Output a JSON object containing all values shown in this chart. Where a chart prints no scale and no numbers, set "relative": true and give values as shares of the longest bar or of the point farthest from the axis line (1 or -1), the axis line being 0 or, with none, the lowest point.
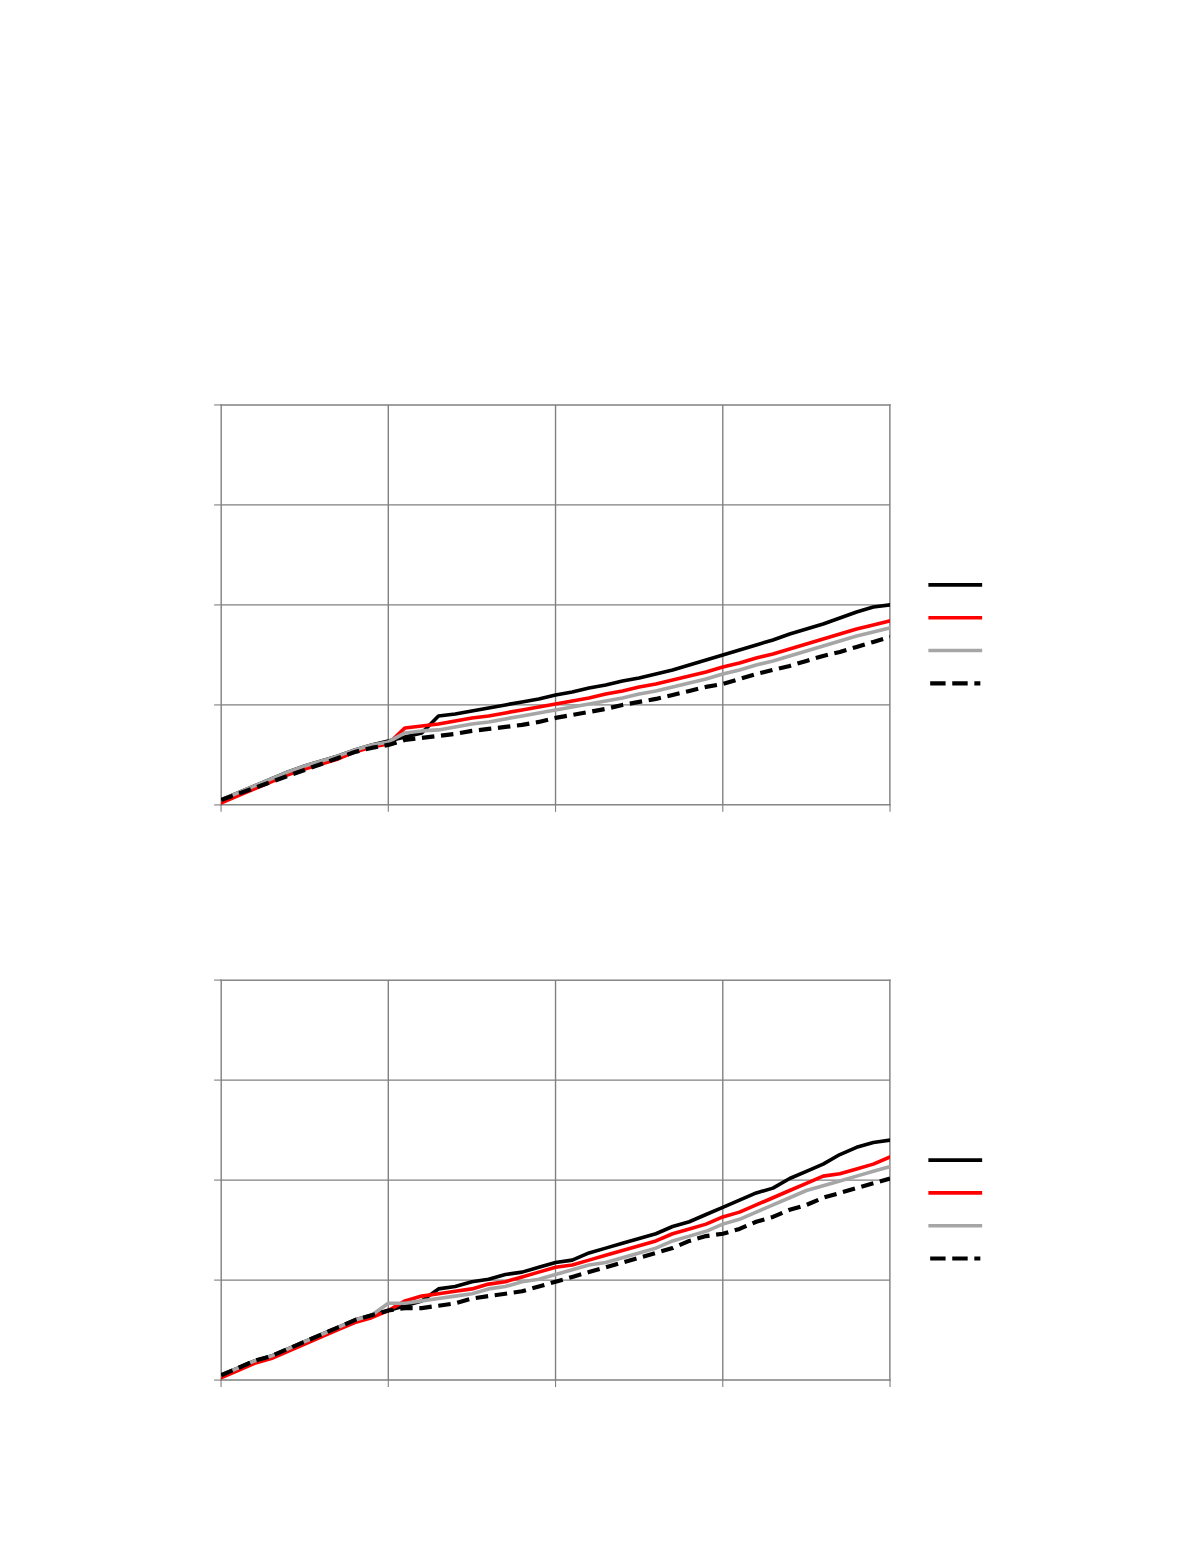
{
  "chart_data": [
    {
      "type": "line",
      "relative": true,
      "grid": true,
      "tick_labels": false,
      "categories": [
        null,
        null,
        null,
        null,
        null,
        null,
        null,
        null,
        null,
        null,
        null,
        null,
        null,
        null,
        null,
        null,
        null,
        null,
        null,
        null,
        null,
        null,
        null,
        null,
        null,
        null,
        null,
        null,
        null,
        null,
        null,
        null,
        null,
        null,
        null,
        null,
        null,
        null,
        null,
        null,
        null
      ],
      "series": [
        {
          "color": "#000000",
          "line_style": "solid",
          "values": [
            0.025,
            0.06,
            0.095,
            0.13,
            0.165,
            0.195,
            0.22,
            0.245,
            0.275,
            0.3,
            0.32,
            0.34,
            0.36,
            0.445,
            0.455,
            0.47,
            0.485,
            0.5,
            0.515,
            0.53,
            0.55,
            0.565,
            0.585,
            0.6,
            0.62,
            0.635,
            0.655,
            0.675,
            0.7,
            0.725,
            0.75,
            0.775,
            0.8,
            0.825,
            0.855,
            0.88,
            0.905,
            0.935,
            0.965,
            0.99,
            1.0
          ]
        },
        {
          "color": "#ff0000",
          "line_style": "solid",
          "values": [
            0.01,
            0.045,
            0.08,
            0.115,
            0.15,
            0.18,
            0.205,
            0.23,
            0.265,
            0.29,
            0.305,
            0.385,
            0.395,
            0.405,
            0.42,
            0.435,
            0.445,
            0.46,
            0.475,
            0.49,
            0.505,
            0.52,
            0.535,
            0.555,
            0.57,
            0.59,
            0.605,
            0.625,
            0.645,
            0.665,
            0.69,
            0.71,
            0.735,
            0.755,
            0.78,
            0.805,
            0.83,
            0.855,
            0.88,
            0.9,
            0.92
          ]
        },
        {
          "color": "#a6a6a6",
          "line_style": "solid",
          "values": [
            0.025,
            0.06,
            0.095,
            0.13,
            0.165,
            0.195,
            0.22,
            0.245,
            0.275,
            0.3,
            0.315,
            0.36,
            0.37,
            0.375,
            0.39,
            0.405,
            0.415,
            0.43,
            0.445,
            0.46,
            0.475,
            0.49,
            0.505,
            0.52,
            0.535,
            0.555,
            0.57,
            0.59,
            0.61,
            0.63,
            0.655,
            0.675,
            0.7,
            0.72,
            0.745,
            0.77,
            0.795,
            0.82,
            0.845,
            0.865,
            0.885
          ]
        },
        {
          "color": "#000000",
          "line_style": "dashed",
          "values": [
            0.025,
            0.055,
            0.085,
            0.115,
            0.145,
            0.175,
            0.205,
            0.235,
            0.265,
            0.285,
            0.3,
            0.325,
            0.335,
            0.345,
            0.355,
            0.37,
            0.38,
            0.39,
            0.4,
            0.415,
            0.435,
            0.45,
            0.465,
            0.48,
            0.5,
            0.515,
            0.53,
            0.55,
            0.57,
            0.59,
            0.605,
            0.63,
            0.655,
            0.675,
            0.695,
            0.72,
            0.745,
            0.765,
            0.79,
            0.815,
            0.84
          ]
        }
      ]
    },
    {
      "type": "line",
      "relative": true,
      "grid": true,
      "tick_labels": false,
      "categories": [
        null,
        null,
        null,
        null,
        null,
        null,
        null,
        null,
        null,
        null,
        null,
        null,
        null,
        null,
        null,
        null,
        null,
        null,
        null,
        null,
        null,
        null,
        null,
        null,
        null,
        null,
        null,
        null,
        null,
        null,
        null,
        null,
        null,
        null,
        null,
        null,
        null,
        null,
        null,
        null,
        null
      ],
      "series": [
        {
          "color": "#000000",
          "line_style": "solid",
          "values": [
            0.02,
            0.05,
            0.08,
            0.1,
            0.13,
            0.16,
            0.19,
            0.22,
            0.25,
            0.27,
            0.29,
            0.31,
            0.33,
            0.38,
            0.39,
            0.41,
            0.42,
            0.44,
            0.45,
            0.47,
            0.49,
            0.5,
            0.53,
            0.55,
            0.57,
            0.59,
            0.61,
            0.64,
            0.66,
            0.69,
            0.72,
            0.75,
            0.78,
            0.8,
            0.84,
            0.87,
            0.9,
            0.94,
            0.97,
            0.99,
            1.0
          ]
        },
        {
          "color": "#ff0000",
          "line_style": "solid",
          "values": [
            0.01,
            0.04,
            0.07,
            0.09,
            0.12,
            0.15,
            0.18,
            0.21,
            0.24,
            0.26,
            0.29,
            0.33,
            0.35,
            0.36,
            0.37,
            0.38,
            0.4,
            0.41,
            0.43,
            0.45,
            0.47,
            0.48,
            0.5,
            0.52,
            0.54,
            0.56,
            0.58,
            0.61,
            0.63,
            0.65,
            0.68,
            0.7,
            0.73,
            0.76,
            0.79,
            0.82,
            0.85,
            0.86,
            0.88,
            0.9,
            0.93
          ]
        },
        {
          "color": "#a6a6a6",
          "line_style": "solid",
          "values": [
            0.02,
            0.05,
            0.08,
            0.1,
            0.13,
            0.16,
            0.19,
            0.22,
            0.25,
            0.27,
            0.32,
            0.32,
            0.33,
            0.34,
            0.35,
            0.36,
            0.38,
            0.39,
            0.41,
            0.42,
            0.44,
            0.46,
            0.48,
            0.49,
            0.51,
            0.53,
            0.55,
            0.58,
            0.6,
            0.62,
            0.65,
            0.67,
            0.7,
            0.73,
            0.76,
            0.79,
            0.81,
            0.83,
            0.85,
            0.87,
            0.89
          ]
        },
        {
          "color": "#000000",
          "line_style": "dashed",
          "values": [
            0.02,
            0.05,
            0.08,
            0.1,
            0.13,
            0.16,
            0.19,
            0.22,
            0.25,
            0.27,
            0.29,
            0.3,
            0.3,
            0.31,
            0.32,
            0.34,
            0.35,
            0.36,
            0.37,
            0.39,
            0.41,
            0.43,
            0.45,
            0.47,
            0.49,
            0.51,
            0.53,
            0.55,
            0.58,
            0.6,
            0.61,
            0.63,
            0.66,
            0.68,
            0.71,
            0.73,
            0.76,
            0.78,
            0.8,
            0.82,
            0.84
          ]
        }
      ]
    }
  ]
}
